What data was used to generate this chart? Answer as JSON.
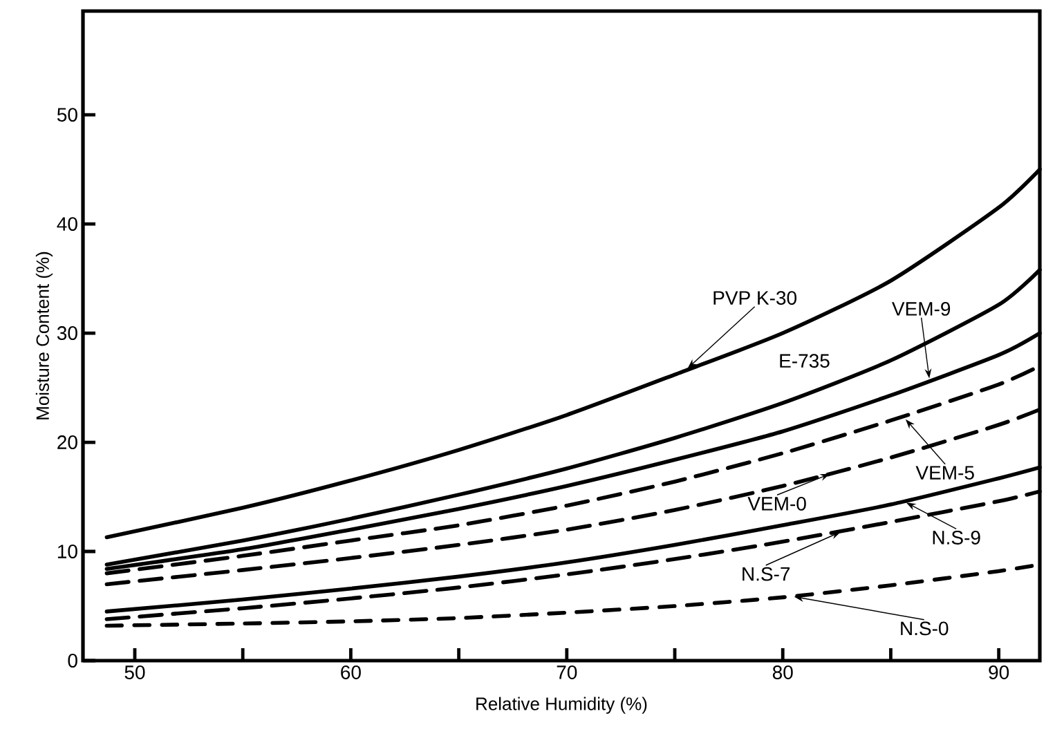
{
  "chart_data": {
    "type": "line",
    "xlabel": "Relative Humidity  (%)",
    "ylabel": "Moisture Content (%)",
    "xlim": [
      47.6,
      91.9
    ],
    "ylim": [
      0,
      59.5
    ],
    "xticks": [
      50,
      {
        "value": 55,
        "label": null
      },
      60,
      {
        "value": 65,
        "label": null
      },
      70,
      {
        "value": 75,
        "label": null
      },
      80,
      {
        "value": 85,
        "label": null
      },
      90
    ],
    "yticks": [
      0,
      10,
      20,
      30,
      40,
      50
    ],
    "grid": false,
    "marker": "none",
    "series": [
      {
        "color": "#000000",
        "line_style": "solid",
        "x": [
          48.7,
          55,
          60,
          65,
          70,
          75,
          80,
          85,
          90,
          91.9
        ],
        "values": [
          11.3,
          14,
          16.5,
          19.3,
          22.5,
          26.2,
          30,
          34.8,
          41.5,
          45
        ]
      },
      {
        "color": "#000000",
        "line_style": "solid",
        "x": [
          48.7,
          55,
          60,
          65,
          70,
          75,
          80,
          85,
          90,
          91.9
        ],
        "values": [
          8.8,
          11,
          13,
          15.2,
          17.6,
          20.4,
          23.6,
          27.5,
          32.6,
          35.8
        ]
      },
      {
        "color": "#000000",
        "line_style": "solid",
        "x": [
          48.7,
          55,
          60,
          65,
          70,
          75,
          80,
          85,
          90,
          91.9
        ],
        "values": [
          8.4,
          10.2,
          12,
          13.9,
          16,
          18.4,
          21,
          24.3,
          28,
          30
        ]
      },
      {
        "color": "#000000",
        "line_style": "dashed",
        "x": [
          48.7,
          55,
          60,
          65,
          70,
          75,
          80,
          85,
          90,
          91.9
        ],
        "values": [
          8,
          9.6,
          11,
          12.4,
          14.2,
          16.4,
          19,
          22,
          25.3,
          27
        ]
      },
      {
        "color": "#000000",
        "line_style": "dashed",
        "x": [
          48.7,
          55,
          60,
          65,
          70,
          75,
          80,
          85,
          90,
          91.9
        ],
        "values": [
          7,
          8.3,
          9.4,
          10.6,
          12,
          13.8,
          16,
          18.6,
          21.6,
          23
        ]
      },
      {
        "color": "#000000",
        "line_style": "solid",
        "x": [
          48.7,
          55,
          60,
          65,
          70,
          75,
          80,
          85,
          90,
          91.9
        ],
        "values": [
          4.5,
          5.6,
          6.6,
          7.7,
          9,
          10.6,
          12.4,
          14.3,
          16.7,
          17.7
        ]
      },
      {
        "color": "#000000",
        "line_style": "dashed",
        "x": [
          48.7,
          55,
          60,
          65,
          70,
          75,
          80,
          85,
          90,
          91.9
        ],
        "values": [
          3.8,
          4.8,
          5.7,
          6.7,
          7.9,
          9.3,
          10.9,
          12.7,
          14.6,
          15.5
        ]
      },
      {
        "color": "#000000",
        "line_style": "dotted",
        "x": [
          48.7,
          55,
          60,
          65,
          70,
          75,
          80,
          85,
          90,
          91.9
        ],
        "values": [
          3.2,
          3.4,
          3.6,
          3.9,
          4.4,
          5,
          5.8,
          6.9,
          8.2,
          8.8
        ]
      }
    ],
    "annotations": [
      {
        "text": "PVP K-30",
        "x": 75.5,
        "y": 26.6
      },
      {
        "text": "E-735",
        "x": 81,
        "y": 24.4
      },
      {
        "text": "VEM-9",
        "x": 86.8,
        "y": 25.6
      },
      {
        "text": "VEM-5",
        "x": 85.6,
        "y": 22.3
      },
      {
        "text": "VEM-0",
        "x": 82.3,
        "y": 17.2
      },
      {
        "text": "N.S-9",
        "x": 85.6,
        "y": 14.6
      },
      {
        "text": "N.S-7",
        "x": 82.8,
        "y": 11.9
      },
      {
        "text": "N.S-0",
        "x": 80.4,
        "y": 5.9
      }
    ]
  }
}
